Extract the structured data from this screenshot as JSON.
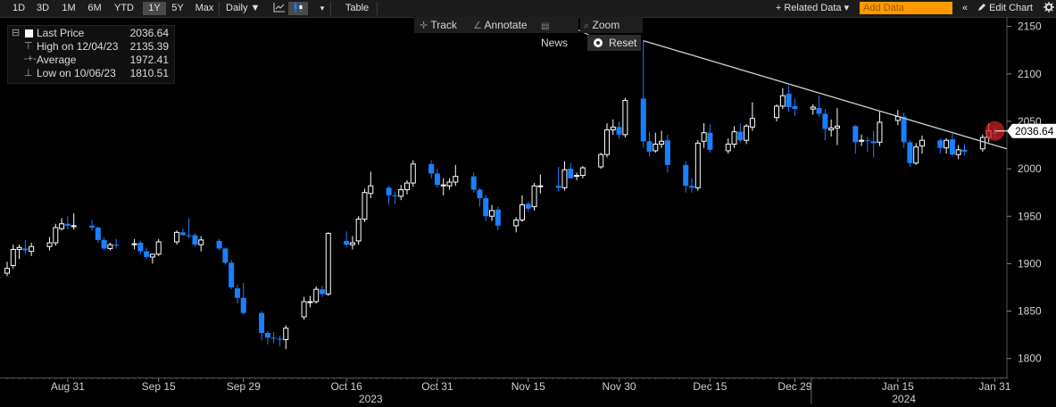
{
  "toolbar": {
    "ranges": [
      "1D",
      "3D",
      "1M",
      "6M",
      "YTD",
      "1Y",
      "5Y",
      "Max"
    ],
    "active_range": "1Y",
    "interval": "Daily ▼",
    "table_label": "Table",
    "related_data_label": "+ Related Data ▾",
    "add_data_placeholder": "Add Data",
    "collapse_label": "«",
    "edit_chart_label": "Edit Chart",
    "settings_icon": "gear-icon",
    "line_chart_icon": "line-chart-icon",
    "candle_icon": "candlestick-icon"
  },
  "subbar": {
    "track": "Track",
    "annotate": "Annotate",
    "news": "News",
    "zoom": "Zoom",
    "reset": "Reset"
  },
  "legend": {
    "last_label": "Last Price",
    "last_value": "2036.64",
    "high_label": "High on 12/04/23",
    "high_value": "2135.39",
    "avg_label": "Average",
    "avg_value": "1972.41",
    "low_label": "Low on 10/06/23",
    "low_value": "1810.51"
  },
  "colors": {
    "up": "#ffffff",
    "down": "#1a7fff",
    "trend": "#d0d0d0",
    "marker": "#cc2222"
  },
  "chart_data": {
    "type": "candlestick",
    "ylim": [
      1780,
      2160
    ],
    "yticks": [
      1800,
      1850,
      1900,
      1950,
      2000,
      2050,
      2100,
      2150
    ],
    "last_value_label": "2036.64",
    "date_range": [
      "2023-08-21",
      "2024-02-02"
    ],
    "xticks": [
      {
        "date": "2023-08-31",
        "label": "Aug 31"
      },
      {
        "date": "2023-09-15",
        "label": "Sep 15"
      },
      {
        "date": "2023-09-29",
        "label": "Sep 29"
      },
      {
        "date": "2023-10-16",
        "label": "Oct 16"
      },
      {
        "date": "2023-10-31",
        "label": "Oct 31"
      },
      {
        "date": "2023-11-15",
        "label": "Nov 15"
      },
      {
        "date": "2023-11-30",
        "label": "Nov 30"
      },
      {
        "date": "2023-12-15",
        "label": "Dec 15"
      },
      {
        "date": "2023-12-29",
        "label": "Dec 29"
      },
      {
        "date": "2024-01-15",
        "label": "Jan 15"
      },
      {
        "date": "2024-01-31",
        "label": "Jan 31"
      }
    ],
    "year_labels": [
      {
        "date": "2023-10-20",
        "label": "2023"
      },
      {
        "date": "2024-01-16",
        "label": "2024"
      }
    ],
    "trendline": {
      "start": [
        "2023-12-04",
        2135
      ],
      "end": [
        "2024-02-02",
        2021
      ]
    },
    "candles": [
      {
        "d": "2023-08-21",
        "o": 1890,
        "h": 1902,
        "l": 1887,
        "c": 1895
      },
      {
        "d": "2023-08-22",
        "o": 1898,
        "h": 1920,
        "l": 1895,
        "c": 1915
      },
      {
        "d": "2023-08-23",
        "o": 1915,
        "h": 1920,
        "l": 1905,
        "c": 1917
      },
      {
        "d": "2023-08-24",
        "o": 1916,
        "h": 1925,
        "l": 1910,
        "c": 1914
      },
      {
        "d": "2023-08-25",
        "o": 1913,
        "h": 1922,
        "l": 1908,
        "c": 1918
      },
      {
        "d": "2023-08-28",
        "o": 1918,
        "h": 1928,
        "l": 1914,
        "c": 1922
      },
      {
        "d": "2023-08-29",
        "o": 1922,
        "h": 1942,
        "l": 1919,
        "c": 1938
      },
      {
        "d": "2023-08-30",
        "o": 1937,
        "h": 1948,
        "l": 1935,
        "c": 1942
      },
      {
        "d": "2023-08-31",
        "o": 1942,
        "h": 1950,
        "l": 1936,
        "c": 1940
      },
      {
        "d": "2023-09-01",
        "o": 1940,
        "h": 1953,
        "l": 1936,
        "c": 1940
      },
      {
        "d": "2023-09-04",
        "o": 1940,
        "h": 1946,
        "l": 1935,
        "c": 1938
      },
      {
        "d": "2023-09-05",
        "o": 1938,
        "h": 1939,
        "l": 1922,
        "c": 1925
      },
      {
        "d": "2023-09-06",
        "o": 1925,
        "h": 1928,
        "l": 1914,
        "c": 1916
      },
      {
        "d": "2023-09-07",
        "o": 1916,
        "h": 1922,
        "l": 1914,
        "c": 1920
      },
      {
        "d": "2023-09-08",
        "o": 1920,
        "h": 1926,
        "l": 1916,
        "c": 1919
      },
      {
        "d": "2023-09-11",
        "o": 1920,
        "h": 1926,
        "l": 1915,
        "c": 1921
      },
      {
        "d": "2023-09-12",
        "o": 1922,
        "h": 1924,
        "l": 1910,
        "c": 1913
      },
      {
        "d": "2023-09-13",
        "o": 1913,
        "h": 1917,
        "l": 1905,
        "c": 1907
      },
      {
        "d": "2023-09-14",
        "o": 1907,
        "h": 1910,
        "l": 1900,
        "c": 1910
      },
      {
        "d": "2023-09-15",
        "o": 1910,
        "h": 1926,
        "l": 1908,
        "c": 1923
      },
      {
        "d": "2023-09-18",
        "o": 1923,
        "h": 1935,
        "l": 1920,
        "c": 1933
      },
      {
        "d": "2023-09-19",
        "o": 1933,
        "h": 1937,
        "l": 1930,
        "c": 1930
      },
      {
        "d": "2023-09-20",
        "o": 1930,
        "h": 1948,
        "l": 1927,
        "c": 1929
      },
      {
        "d": "2023-09-21",
        "o": 1930,
        "h": 1932,
        "l": 1918,
        "c": 1920
      },
      {
        "d": "2023-09-22",
        "o": 1920,
        "h": 1929,
        "l": 1913,
        "c": 1925
      },
      {
        "d": "2023-09-25",
        "o": 1924,
        "h": 1926,
        "l": 1914,
        "c": 1916
      },
      {
        "d": "2023-09-26",
        "o": 1916,
        "h": 1917,
        "l": 1899,
        "c": 1901
      },
      {
        "d": "2023-09-27",
        "o": 1901,
        "h": 1904,
        "l": 1873,
        "c": 1875
      },
      {
        "d": "2023-09-28",
        "o": 1874,
        "h": 1878,
        "l": 1858,
        "c": 1864
      },
      {
        "d": "2023-09-29",
        "o": 1864,
        "h": 1880,
        "l": 1846,
        "c": 1848
      },
      {
        "d": "2023-10-02",
        "o": 1848,
        "h": 1850,
        "l": 1819,
        "c": 1827
      },
      {
        "d": "2023-10-03",
        "o": 1827,
        "h": 1829,
        "l": 1815,
        "c": 1822
      },
      {
        "d": "2023-10-04",
        "o": 1822,
        "h": 1828,
        "l": 1816,
        "c": 1821
      },
      {
        "d": "2023-10-05",
        "o": 1821,
        "h": 1824,
        "l": 1813,
        "c": 1820
      },
      {
        "d": "2023-10-06",
        "o": 1820,
        "h": 1835,
        "l": 1810,
        "c": 1832
      },
      {
        "d": "2023-10-09",
        "o": 1844,
        "h": 1865,
        "l": 1841,
        "c": 1860
      },
      {
        "d": "2023-10-10",
        "o": 1859,
        "h": 1866,
        "l": 1854,
        "c": 1860
      },
      {
        "d": "2023-10-11",
        "o": 1860,
        "h": 1876,
        "l": 1858,
        "c": 1873
      },
      {
        "d": "2023-10-12",
        "o": 1873,
        "h": 1877,
        "l": 1865,
        "c": 1868
      },
      {
        "d": "2023-10-13",
        "o": 1868,
        "h": 1933,
        "l": 1866,
        "c": 1932
      },
      {
        "d": "2023-10-16",
        "o": 1924,
        "h": 1934,
        "l": 1917,
        "c": 1920
      },
      {
        "d": "2023-10-17",
        "o": 1920,
        "h": 1929,
        "l": 1915,
        "c": 1922
      },
      {
        "d": "2023-10-18",
        "o": 1924,
        "h": 1950,
        "l": 1920,
        "c": 1947
      },
      {
        "d": "2023-10-19",
        "o": 1947,
        "h": 1979,
        "l": 1944,
        "c": 1975
      },
      {
        "d": "2023-10-20",
        "o": 1974,
        "h": 1997,
        "l": 1969,
        "c": 1982
      },
      {
        "d": "2023-10-23",
        "o": 1980,
        "h": 1982,
        "l": 1962,
        "c": 1972
      },
      {
        "d": "2023-10-24",
        "o": 1972,
        "h": 1976,
        "l": 1963,
        "c": 1971
      },
      {
        "d": "2023-10-25",
        "o": 1971,
        "h": 1983,
        "l": 1967,
        "c": 1978
      },
      {
        "d": "2023-10-26",
        "o": 1978,
        "h": 1988,
        "l": 1973,
        "c": 1985
      },
      {
        "d": "2023-10-27",
        "o": 1985,
        "h": 2009,
        "l": 1981,
        "c": 2005
      },
      {
        "d": "2023-10-30",
        "o": 2005,
        "h": 2009,
        "l": 1990,
        "c": 1995
      },
      {
        "d": "2023-10-31",
        "o": 1995,
        "h": 2000,
        "l": 1980,
        "c": 1983
      },
      {
        "d": "2023-11-01",
        "o": 1983,
        "h": 1990,
        "l": 1972,
        "c": 1983
      },
      {
        "d": "2023-11-02",
        "o": 1982,
        "h": 1990,
        "l": 1978,
        "c": 1986
      },
      {
        "d": "2023-11-03",
        "o": 1986,
        "h": 2004,
        "l": 1982,
        "c": 1992
      },
      {
        "d": "2023-11-06",
        "o": 1992,
        "h": 1996,
        "l": 1975,
        "c": 1978
      },
      {
        "d": "2023-11-07",
        "o": 1978,
        "h": 1980,
        "l": 1960,
        "c": 1969
      },
      {
        "d": "2023-11-08",
        "o": 1969,
        "h": 1972,
        "l": 1945,
        "c": 1950
      },
      {
        "d": "2023-11-09",
        "o": 1950,
        "h": 1962,
        "l": 1945,
        "c": 1956
      },
      {
        "d": "2023-11-10",
        "o": 1957,
        "h": 1960,
        "l": 1935,
        "c": 1940
      },
      {
        "d": "2023-11-13",
        "o": 1940,
        "h": 1949,
        "l": 1933,
        "c": 1946
      },
      {
        "d": "2023-11-14",
        "o": 1946,
        "h": 1972,
        "l": 1944,
        "c": 1962
      },
      {
        "d": "2023-11-15",
        "o": 1963,
        "h": 1965,
        "l": 1955,
        "c": 1958
      },
      {
        "d": "2023-11-16",
        "o": 1960,
        "h": 1985,
        "l": 1956,
        "c": 1982
      },
      {
        "d": "2023-11-17",
        "o": 1982,
        "h": 1994,
        "l": 1974,
        "c": 1982
      },
      {
        "d": "2023-11-20",
        "o": 1982,
        "h": 2002,
        "l": 1976,
        "c": 1980
      },
      {
        "d": "2023-11-21",
        "o": 1980,
        "h": 2008,
        "l": 1977,
        "c": 1999
      },
      {
        "d": "2023-11-22",
        "o": 2000,
        "h": 2006,
        "l": 1990,
        "c": 1990
      },
      {
        "d": "2023-11-23",
        "o": 1992,
        "h": 1996,
        "l": 1988,
        "c": 1993
      },
      {
        "d": "2023-11-24",
        "o": 1993,
        "h": 2003,
        "l": 1990,
        "c": 2001
      },
      {
        "d": "2023-11-27",
        "o": 2002,
        "h": 2017,
        "l": 2000,
        "c": 2015
      },
      {
        "d": "2023-11-28",
        "o": 2015,
        "h": 2048,
        "l": 2012,
        "c": 2041
      },
      {
        "d": "2023-11-29",
        "o": 2041,
        "h": 2052,
        "l": 2036,
        "c": 2044
      },
      {
        "d": "2023-11-30",
        "o": 2044,
        "h": 2050,
        "l": 2032,
        "c": 2036
      },
      {
        "d": "2023-12-01",
        "o": 2036,
        "h": 2075,
        "l": 2033,
        "c": 2072
      },
      {
        "d": "2023-12-04",
        "o": 2074,
        "h": 2135,
        "l": 2022,
        "c": 2029
      },
      {
        "d": "2023-12-05",
        "o": 2029,
        "h": 2039,
        "l": 2013,
        "c": 2018
      },
      {
        "d": "2023-12-06",
        "o": 2019,
        "h": 2038,
        "l": 2017,
        "c": 2026
      },
      {
        "d": "2023-12-07",
        "o": 2026,
        "h": 2040,
        "l": 2022,
        "c": 2029
      },
      {
        "d": "2023-12-08",
        "o": 2030,
        "h": 2036,
        "l": 1996,
        "c": 2004
      },
      {
        "d": "2023-12-11",
        "o": 2004,
        "h": 2008,
        "l": 1975,
        "c": 1982
      },
      {
        "d": "2023-12-12",
        "o": 1982,
        "h": 1990,
        "l": 1975,
        "c": 1980
      },
      {
        "d": "2023-12-13",
        "o": 1980,
        "h": 2030,
        "l": 1977,
        "c": 2027
      },
      {
        "d": "2023-12-14",
        "o": 2029,
        "h": 2048,
        "l": 2022,
        "c": 2038
      },
      {
        "d": "2023-12-15",
        "o": 2038,
        "h": 2047,
        "l": 2017,
        "c": 2020
      },
      {
        "d": "2023-12-18",
        "o": 2019,
        "h": 2032,
        "l": 2016,
        "c": 2026
      },
      {
        "d": "2023-12-19",
        "o": 2026,
        "h": 2045,
        "l": 2022,
        "c": 2039
      },
      {
        "d": "2023-12-20",
        "o": 2039,
        "h": 2048,
        "l": 2028,
        "c": 2030
      },
      {
        "d": "2023-12-21",
        "o": 2030,
        "h": 2047,
        "l": 2026,
        "c": 2045
      },
      {
        "d": "2023-12-22",
        "o": 2044,
        "h": 2070,
        "l": 2040,
        "c": 2053
      },
      {
        "d": "2023-12-26",
        "o": 2054,
        "h": 2068,
        "l": 2050,
        "c": 2066
      },
      {
        "d": "2023-12-27",
        "o": 2066,
        "h": 2085,
        "l": 2063,
        "c": 2077
      },
      {
        "d": "2023-12-28",
        "o": 2079,
        "h": 2088,
        "l": 2060,
        "c": 2065
      },
      {
        "d": "2023-12-29",
        "o": 2066,
        "h": 2074,
        "l": 2056,
        "c": 2063
      },
      {
        "d": "2024-01-01",
        "o": 2063,
        "h": 2068,
        "l": 2057,
        "c": 2065
      },
      {
        "d": "2024-01-02",
        "o": 2064,
        "h": 2077,
        "l": 2055,
        "c": 2058
      },
      {
        "d": "2024-01-03",
        "o": 2058,
        "h": 2063,
        "l": 2030,
        "c": 2042
      },
      {
        "d": "2024-01-04",
        "o": 2041,
        "h": 2052,
        "l": 2034,
        "c": 2043
      },
      {
        "d": "2024-01-05",
        "o": 2043,
        "h": 2064,
        "l": 2025,
        "c": 2045
      },
      {
        "d": "2024-01-08",
        "o": 2045,
        "h": 2046,
        "l": 2016,
        "c": 2028
      },
      {
        "d": "2024-01-09",
        "o": 2029,
        "h": 2036,
        "l": 2024,
        "c": 2030
      },
      {
        "d": "2024-01-10",
        "o": 2030,
        "h": 2034,
        "l": 2018,
        "c": 2029
      },
      {
        "d": "2024-01-11",
        "o": 2029,
        "h": 2040,
        "l": 2012,
        "c": 2027
      },
      {
        "d": "2024-01-12",
        "o": 2028,
        "h": 2060,
        "l": 2024,
        "c": 2049
      },
      {
        "d": "2024-01-15",
        "o": 2051,
        "h": 2062,
        "l": 2046,
        "c": 2055
      },
      {
        "d": "2024-01-16",
        "o": 2055,
        "h": 2059,
        "l": 2022,
        "c": 2028
      },
      {
        "d": "2024-01-17",
        "o": 2028,
        "h": 2030,
        "l": 2002,
        "c": 2006
      },
      {
        "d": "2024-01-18",
        "o": 2006,
        "h": 2027,
        "l": 2004,
        "c": 2023
      },
      {
        "d": "2024-01-19",
        "o": 2024,
        "h": 2035,
        "l": 2016,
        "c": 2030
      },
      {
        "d": "2024-01-22",
        "o": 2030,
        "h": 2032,
        "l": 2016,
        "c": 2022
      },
      {
        "d": "2024-01-23",
        "o": 2022,
        "h": 2032,
        "l": 2016,
        "c": 2030
      },
      {
        "d": "2024-01-24",
        "o": 2031,
        "h": 2037,
        "l": 2014,
        "c": 2015
      },
      {
        "d": "2024-01-25",
        "o": 2015,
        "h": 2025,
        "l": 2010,
        "c": 2020
      },
      {
        "d": "2024-01-26",
        "o": 2020,
        "h": 2026,
        "l": 2014,
        "c": 2018
      },
      {
        "d": "2024-01-29",
        "o": 2021,
        "h": 2036,
        "l": 2018,
        "c": 2033
      },
      {
        "d": "2024-01-30",
        "o": 2033,
        "h": 2048,
        "l": 2028,
        "c": 2040
      },
      {
        "d": "2024-01-31",
        "o": 2038,
        "h": 2044,
        "l": 2032,
        "c": 2037
      }
    ]
  }
}
